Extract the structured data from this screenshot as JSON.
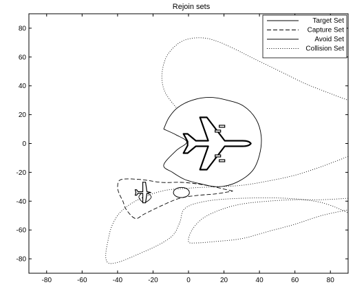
{
  "chart_data": {
    "type": "line",
    "title": "Rejoin sets",
    "xlabel": "",
    "ylabel": "",
    "xlim": [
      -90,
      90
    ],
    "ylim": [
      -90,
      90
    ],
    "grid": false,
    "legend_position": "top-right",
    "xticks": [
      -80,
      -60,
      -40,
      -20,
      0,
      20,
      40,
      60,
      80
    ],
    "yticks": [
      -80,
      -60,
      -40,
      -20,
      0,
      20,
      40,
      60,
      80
    ],
    "series": [
      {
        "name": "Target Set",
        "style": "solid",
        "closed": true,
        "points": [
          [
            -25,
            -33
          ],
          [
            -28,
            -37
          ],
          [
            -25,
            -41
          ],
          [
            -21,
            -37
          ],
          [
            -25,
            -33
          ]
        ]
      },
      {
        "name": "Capture Set",
        "style": "dashed",
        "closed": false,
        "points": [
          [
            25,
            -33
          ],
          [
            10,
            -29
          ],
          [
            -3,
            -27
          ],
          [
            -15,
            -27
          ],
          [
            -27,
            -25
          ],
          [
            -38,
            -25
          ],
          [
            -40,
            -30
          ],
          [
            -39,
            -35
          ],
          [
            -37,
            -40
          ],
          [
            -35,
            -46
          ],
          [
            -30,
            -52
          ],
          [
            -25,
            -49
          ],
          [
            -15,
            -43
          ],
          [
            -5,
            -38
          ],
          [
            5,
            -36
          ],
          [
            15,
            -35
          ],
          [
            25,
            -33
          ]
        ]
      },
      {
        "name": "Avoid Set",
        "style": "solid",
        "closed": false,
        "points": [
          [
            -14,
            10
          ],
          [
            -11,
            18
          ],
          [
            -6,
            25
          ],
          [
            2,
            30
          ],
          [
            12,
            32
          ],
          [
            22,
            30
          ],
          [
            31,
            26
          ],
          [
            38,
            17
          ],
          [
            41,
            5
          ],
          [
            40,
            -8
          ],
          [
            36,
            -19
          ],
          [
            27,
            -27
          ],
          [
            17,
            -30
          ],
          [
            7,
            -28
          ],
          [
            -2,
            -25
          ],
          [
            -9,
            -20
          ],
          [
            -14,
            -15
          ],
          [
            -7,
            -5
          ],
          [
            -1,
            1
          ],
          [
            -7,
            6
          ],
          [
            -14,
            10
          ]
        ]
      },
      {
        "name": "Collision Set",
        "style": "dotted",
        "closed": false,
        "points": [
          [
            90,
            -9
          ],
          [
            75,
            -16
          ],
          [
            60,
            -22
          ],
          [
            45,
            -26
          ],
          [
            30,
            -29
          ],
          [
            15,
            -30
          ],
          [
            0,
            -31
          ],
          [
            -15,
            -33
          ],
          [
            -30,
            -40
          ],
          [
            -40,
            -50
          ],
          [
            -45,
            -65
          ],
          [
            -45,
            -83
          ],
          [
            -25,
            -75
          ],
          [
            -10,
            -65
          ],
          [
            -5,
            -55
          ],
          [
            -2,
            -45
          ],
          [
            10,
            -40
          ],
          [
            30,
            -38
          ],
          [
            55,
            -38
          ],
          [
            75,
            -41
          ],
          [
            90,
            -48
          ]
        ]
      },
      {
        "name": "Collision Set outer",
        "style": "dotted",
        "closed": false,
        "points": [
          [
            -7,
            25
          ],
          [
            -13,
            35
          ],
          [
            -15,
            45
          ],
          [
            -14,
            55
          ],
          [
            -11,
            63
          ],
          [
            -5,
            70
          ],
          [
            2,
            73
          ],
          [
            10,
            73
          ],
          [
            18,
            70
          ],
          [
            27,
            65
          ],
          [
            35,
            60
          ],
          [
            45,
            54
          ],
          [
            55,
            48
          ],
          [
            65,
            42
          ],
          [
            75,
            37
          ],
          [
            90,
            30
          ]
        ]
      },
      {
        "name": "Collision Set lower",
        "style": "dotted",
        "closed": false,
        "points": [
          [
            90,
            -38
          ],
          [
            75,
            -39
          ],
          [
            60,
            -39
          ],
          [
            45,
            -40
          ],
          [
            30,
            -42
          ],
          [
            18,
            -46
          ],
          [
            8,
            -52
          ],
          [
            2,
            -60
          ],
          [
            0,
            -68
          ],
          [
            4,
            -69
          ],
          [
            15,
            -68
          ],
          [
            30,
            -66
          ],
          [
            45,
            -61
          ],
          [
            60,
            -56
          ],
          [
            75,
            -50
          ],
          [
            90,
            -46
          ]
        ]
      }
    ],
    "markers": [
      {
        "name": "lead-aircraft",
        "shape": "jet",
        "x": 15,
        "y": 0,
        "scale": 1.0
      },
      {
        "name": "wing-aircraft",
        "shape": "small-plane",
        "x": -25,
        "y": -34,
        "scale": 1.0
      },
      {
        "name": "ellipse-marker",
        "shape": "ellipse",
        "x": -4,
        "y": -34,
        "rx": 4.5,
        "ry": 3.5
      }
    ],
    "legend": [
      {
        "label": "Target Set",
        "style": "solid"
      },
      {
        "label": "Capture Set",
        "style": "dashed"
      },
      {
        "label": "Avoid Set",
        "style": "solid"
      },
      {
        "label": "Collision Set",
        "style": "dotted"
      }
    ]
  }
}
